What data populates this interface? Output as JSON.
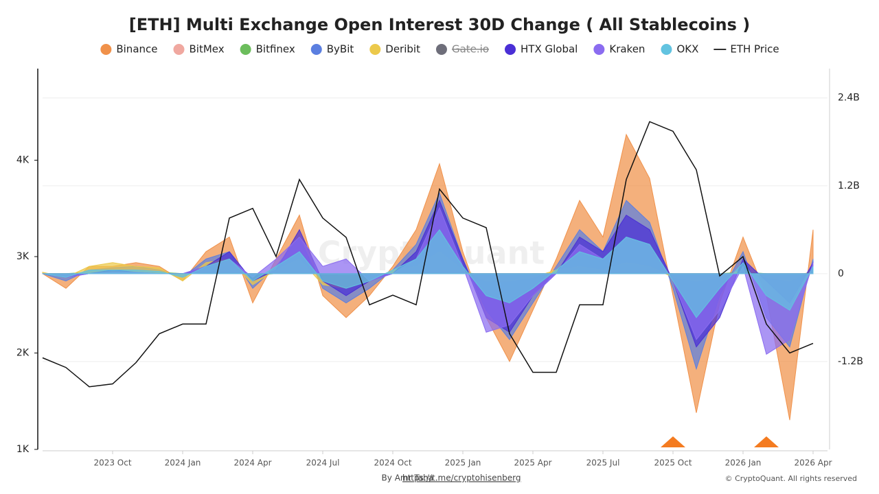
{
  "chart_data": {
    "type": "area",
    "title": "[ETH] Multi Exchange Open Interest 30D Change ( All Stablecoins )",
    "watermark": "CryptoQuant",
    "byline": "By Amr Taha",
    "link": "https://t.me/cryptohisenberg",
    "copyright": "© CryptoQuant. All rights reserved",
    "x": [
      "2023-07",
      "2023-08",
      "2023-09",
      "2023-10",
      "2023-11",
      "2023-12",
      "2024-01",
      "2024-02",
      "2024-03",
      "2024-04",
      "2024-05",
      "2024-06",
      "2024-07",
      "2024-08",
      "2024-09",
      "2024-10",
      "2024-11",
      "2024-12",
      "2025-01",
      "2025-02",
      "2025-03",
      "2025-04",
      "2025-05",
      "2025-06",
      "2025-07",
      "2025-08",
      "2025-09",
      "2025-10",
      "2025-11",
      "2025-12",
      "2026-01",
      "2026-02",
      "2026-03",
      "2026-04"
    ],
    "xlim": [
      "2023-07",
      "2026-05"
    ],
    "xticks": [
      {
        "value": "2023-10",
        "label": "2023 Oct"
      },
      {
        "value": "2024-01",
        "label": "2024 Jan"
      },
      {
        "value": "2024-04",
        "label": "2024 Apr"
      },
      {
        "value": "2024-07",
        "label": "2024 Jul"
      },
      {
        "value": "2024-10",
        "label": "2024 Oct"
      },
      {
        "value": "2025-01",
        "label": "2025 Jan"
      },
      {
        "value": "2025-04",
        "label": "2025 Apr"
      },
      {
        "value": "2025-07",
        "label": "2025 Jul"
      },
      {
        "value": "2025-10",
        "label": "2025 Oct"
      },
      {
        "value": "2026-01",
        "label": "2026 Jan"
      },
      {
        "value": "2026-04",
        "label": "2026 Apr"
      }
    ],
    "ylim": [
      1000,
      4950
    ],
    "yticks": [
      {
        "value": 1000,
        "label": "1K"
      },
      {
        "value": 2000,
        "label": "2K"
      },
      {
        "value": 3000,
        "label": "3K"
      },
      {
        "value": 4000,
        "label": "4K"
      }
    ],
    "y2lim": [
      -2.4,
      2.8
    ],
    "y2ticks": [
      {
        "value": -1.2,
        "label": "-1.2B"
      },
      0,
      {
        "value": 1.2,
        "label": "1.2B"
      },
      {
        "value": 2.4,
        "label": "2.4B"
      }
    ],
    "grid": true,
    "event_markers": [
      "2025-10",
      "2026-02"
    ],
    "event_marker_color": "#f47b20",
    "series": [
      {
        "name": "Binance",
        "color": "#f0914a",
        "axis": "y2",
        "values": [
          0,
          -0.2,
          0.1,
          0.1,
          0.15,
          0.1,
          -0.1,
          0.3,
          0.5,
          -0.4,
          0.2,
          0.8,
          -0.3,
          -0.6,
          -0.3,
          0.1,
          0.6,
          1.5,
          0.3,
          -0.6,
          -1.2,
          -0.5,
          0.2,
          1.0,
          0.5,
          1.9,
          1.3,
          -0.3,
          -1.9,
          -0.4,
          0.5,
          -0.3,
          -2.0,
          0.6
        ]
      },
      {
        "name": "BitMex",
        "color": "#f0a8a0",
        "axis": "y2",
        "values": [
          0,
          0,
          0.01,
          0,
          0,
          0.01,
          0,
          0.01,
          0.02,
          -0.01,
          0,
          0.01,
          0,
          -0.01,
          0,
          0,
          0.01,
          0.02,
          0.01,
          -0.01,
          -0.01,
          0,
          0,
          0.01,
          0,
          0.02,
          0.01,
          0,
          -0.02,
          0,
          0.01,
          0,
          -0.02,
          0.01
        ]
      },
      {
        "name": "Bitfinex",
        "color": "#6cbd5c",
        "axis": "y2",
        "values": [
          0,
          0,
          0.02,
          0.01,
          0,
          0.02,
          0,
          0.02,
          0.03,
          -0.02,
          0,
          0.02,
          0,
          -0.02,
          0,
          0,
          0.02,
          0.04,
          0.02,
          -0.02,
          -0.02,
          0,
          0,
          0.02,
          0,
          0.03,
          0.02,
          0,
          -0.03,
          0,
          0.02,
          0,
          -0.03,
          0.02
        ]
      },
      {
        "name": "ByBit",
        "color": "#5b7fe0",
        "axis": "y2",
        "values": [
          0,
          -0.1,
          0.05,
          0.08,
          0.1,
          0.05,
          -0.05,
          0.2,
          0.3,
          -0.2,
          0.1,
          0.5,
          -0.2,
          -0.4,
          -0.2,
          0.05,
          0.4,
          1.1,
          0.2,
          -0.5,
          -0.9,
          -0.4,
          0.1,
          0.6,
          0.3,
          1.0,
          0.7,
          -0.2,
          -1.3,
          -0.3,
          0.3,
          -0.6,
          -1.0,
          0.2
        ]
      },
      {
        "name": "Deribit",
        "color": "#ecc94b",
        "axis": "y2",
        "values": [
          0.02,
          -0.05,
          0.1,
          0.15,
          0.1,
          0.08,
          -0.1,
          0.15,
          0.2,
          -0.15,
          0.05,
          0.2,
          -0.15,
          -0.2,
          -0.1,
          0.05,
          0.1,
          0.3,
          0.05,
          -0.1,
          -0.1,
          -0.05,
          0.05,
          0.1,
          0.05,
          0.15,
          0.1,
          -0.05,
          -0.1,
          -0.05,
          0.05,
          -0.05,
          -0.1,
          0.05
        ]
      },
      {
        "name": "Gate.io",
        "color": "#6e6e7a",
        "axis": "y2",
        "hidden": true
      },
      {
        "name": "HTX Global",
        "color": "#4a2fd6",
        "axis": "y2",
        "values": [
          0,
          -0.05,
          0,
          0.05,
          0.02,
          0,
          0,
          0.1,
          0.3,
          -0.1,
          0.05,
          0.6,
          -0.1,
          -0.3,
          -0.1,
          0,
          0.3,
          1.0,
          0.2,
          -0.6,
          -0.8,
          -0.3,
          0,
          0.5,
          0.3,
          0.8,
          0.6,
          -0.1,
          -1.0,
          -0.6,
          0.2,
          -0.1,
          -0.4,
          0.15
        ]
      },
      {
        "name": "Kraken",
        "color": "#8b6cf0",
        "axis": "y2",
        "values": [
          0,
          -0.05,
          0,
          0.02,
          0.02,
          0,
          0,
          0.1,
          0.2,
          -0.05,
          0.2,
          0.5,
          0.1,
          0.2,
          -0.1,
          0,
          0.2,
          0.9,
          0.1,
          -0.8,
          -0.7,
          -0.3,
          0,
          0.4,
          0.2,
          0.5,
          0.4,
          -0.1,
          -0.9,
          -0.5,
          0.1,
          -1.1,
          -0.9,
          0.15
        ]
      },
      {
        "name": "OKX",
        "color": "#62c3e0",
        "axis": "y2",
        "values": [
          0,
          -0.05,
          0.05,
          0.05,
          0.05,
          0.03,
          -0.05,
          0.1,
          0.2,
          -0.1,
          0.1,
          0.3,
          -0.1,
          -0.2,
          -0.1,
          0.05,
          0.2,
          0.6,
          0.1,
          -0.3,
          -0.4,
          -0.2,
          0.05,
          0.3,
          0.2,
          0.5,
          0.4,
          -0.1,
          -0.6,
          -0.2,
          0.15,
          -0.3,
          -0.5,
          0.1
        ]
      },
      {
        "name": "ETH Price",
        "color": "#111111",
        "axis": "y",
        "type": "line",
        "values": [
          1950,
          1850,
          1650,
          1680,
          1900,
          2200,
          2300,
          2300,
          3400,
          3500,
          3000,
          3800,
          3400,
          3200,
          2500,
          2600,
          2500,
          3700,
          3400,
          3300,
          2200,
          1800,
          1800,
          2500,
          2500,
          3800,
          4400,
          4300,
          3900,
          2800,
          3000,
          2300,
          2000,
          2100
        ]
      }
    ]
  }
}
